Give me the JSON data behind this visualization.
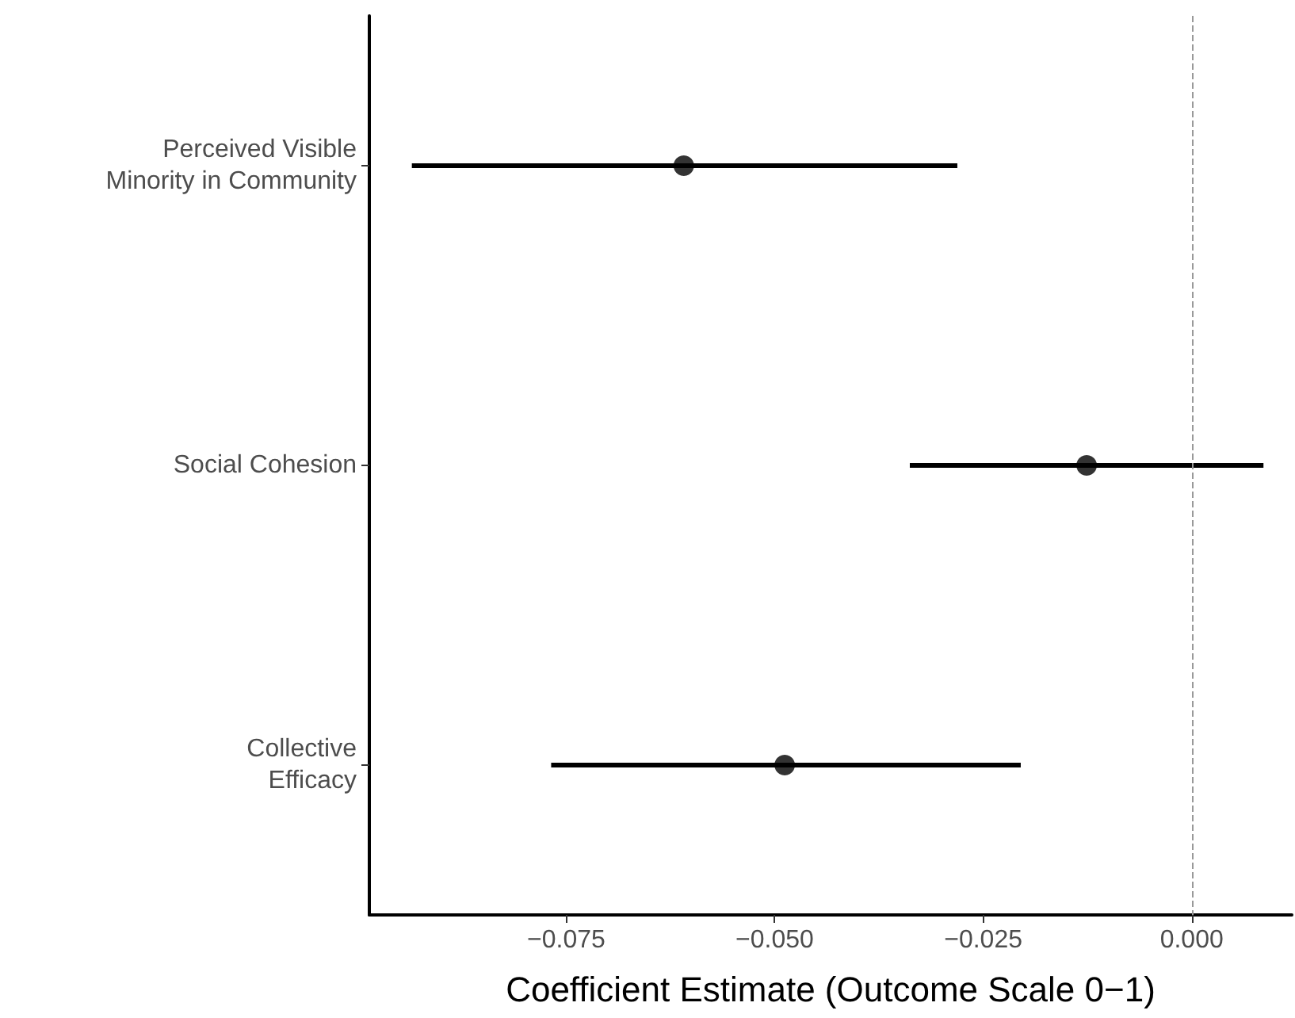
{
  "chart_data": {
    "type": "scatter",
    "orientation": "horizontal",
    "xlabel": "Coefficient Estimate (Outcome Scale 0−1)",
    "categories": [
      "Perceived Visible\nMinority in Community",
      "Social Cohesion",
      "Collective\nEfficacy"
    ],
    "values": [
      -0.0609,
      -0.0126,
      -0.0488
    ],
    "errors": [
      [
        -0.0935,
        -0.0281
      ],
      [
        -0.0338,
        0.0086
      ],
      [
        -0.0768,
        -0.0205
      ]
    ],
    "color": "#000000",
    "marker": "circle",
    "grid": false,
    "xlim": [
      -0.0986,
      0.012
    ],
    "xticks": [
      {
        "value": -0.075,
        "label": "−0.075"
      },
      {
        "value": -0.05,
        "label": "−0.050"
      },
      {
        "value": -0.025,
        "label": "−0.025"
      },
      {
        "value": 0,
        "label": "0.000"
      }
    ],
    "ref_lines": [
      {
        "axis": "x",
        "value": 0,
        "color": "#999999",
        "line_style": "dashed"
      }
    ]
  }
}
